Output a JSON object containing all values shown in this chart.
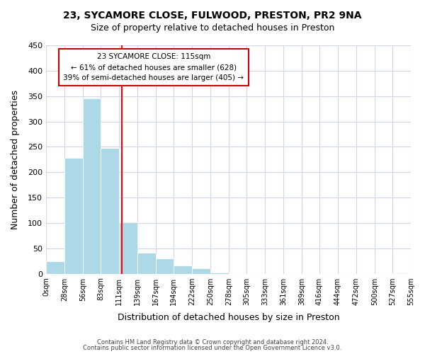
{
  "title": "23, SYCAMORE CLOSE, FULWOOD, PRESTON, PR2 9NA",
  "subtitle": "Size of property relative to detached houses in Preston",
  "xlabel": "Distribution of detached houses by size in Preston",
  "ylabel": "Number of detached properties",
  "bar_color": "#add8e6",
  "bin_edges": [
    0,
    28,
    56,
    83,
    111,
    139,
    167,
    194,
    222,
    250,
    278,
    305,
    333,
    361,
    389,
    416,
    444,
    472,
    500,
    527,
    555
  ],
  "bar_heights": [
    25,
    228,
    345,
    248,
    101,
    41,
    30,
    16,
    10,
    2,
    0,
    0,
    0,
    0,
    0,
    0,
    0,
    0,
    0,
    1
  ],
  "property_line_x": 115,
  "property_line_color": "red",
  "ylim": [
    0,
    450
  ],
  "yticks": [
    0,
    50,
    100,
    150,
    200,
    250,
    300,
    350,
    400,
    450
  ],
  "xtick_labels": [
    "0sqm",
    "28sqm",
    "56sqm",
    "83sqm",
    "111sqm",
    "139sqm",
    "167sqm",
    "194sqm",
    "222sqm",
    "250sqm",
    "278sqm",
    "305sqm",
    "333sqm",
    "361sqm",
    "389sqm",
    "416sqm",
    "444sqm",
    "472sqm",
    "500sqm",
    "527sqm",
    "555sqm"
  ],
  "annotation_title": "23 SYCAMORE CLOSE: 115sqm",
  "annotation_line1": "← 61% of detached houses are smaller (628)",
  "annotation_line2": "39% of semi-detached houses are larger (405) →",
  "footer_line1": "Contains HM Land Registry data © Crown copyright and database right 2024.",
  "footer_line2": "Contains public sector information licensed under the Open Government Licence v3.0.",
  "background_color": "#ffffff",
  "grid_color": "#d0d8e8"
}
